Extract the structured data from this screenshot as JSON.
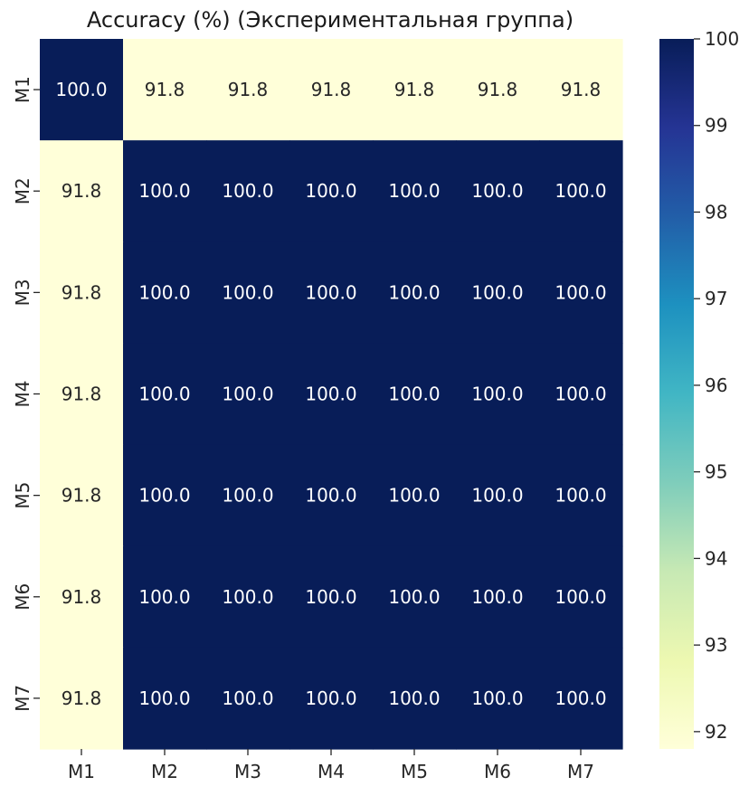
{
  "chart_data": {
    "type": "heatmap",
    "title": "Accuracy (%) (Экспериментальная группа)",
    "x_categories": [
      "M1",
      "M2",
      "M3",
      "M4",
      "M5",
      "M6",
      "M7"
    ],
    "y_categories": [
      "M1",
      "M2",
      "M3",
      "M4",
      "M5",
      "M6",
      "M7"
    ],
    "values": [
      [
        100.0,
        91.8,
        91.8,
        91.8,
        91.8,
        91.8,
        91.8
      ],
      [
        91.8,
        100.0,
        100.0,
        100.0,
        100.0,
        100.0,
        100.0
      ],
      [
        91.8,
        100.0,
        100.0,
        100.0,
        100.0,
        100.0,
        100.0
      ],
      [
        91.8,
        100.0,
        100.0,
        100.0,
        100.0,
        100.0,
        100.0
      ],
      [
        91.8,
        100.0,
        100.0,
        100.0,
        100.0,
        100.0,
        100.0
      ],
      [
        91.8,
        100.0,
        100.0,
        100.0,
        100.0,
        100.0,
        100.0
      ],
      [
        91.8,
        100.0,
        100.0,
        100.0,
        100.0,
        100.0,
        100.0
      ]
    ],
    "cell_labels": [
      [
        "100.0",
        "91.8",
        "91.8",
        "91.8",
        "91.8",
        "91.8",
        "91.8"
      ],
      [
        "91.8",
        "100.0",
        "100.0",
        "100.0",
        "100.0",
        "100.0",
        "100.0"
      ],
      [
        "91.8",
        "100.0",
        "100.0",
        "100.0",
        "100.0",
        "100.0",
        "100.0"
      ],
      [
        "91.8",
        "100.0",
        "100.0",
        "100.0",
        "100.0",
        "100.0",
        "100.0"
      ],
      [
        "91.8",
        "100.0",
        "100.0",
        "100.0",
        "100.0",
        "100.0",
        "100.0"
      ],
      [
        "91.8",
        "100.0",
        "100.0",
        "100.0",
        "100.0",
        "100.0",
        "100.0"
      ],
      [
        "91.8",
        "100.0",
        "100.0",
        "100.0",
        "100.0",
        "100.0",
        "100.0"
      ]
    ],
    "colorscale": "YlGnBu",
    "colorbar": {
      "range": [
        91.8,
        100.0
      ],
      "ticks": [
        "92",
        "93",
        "94",
        "95",
        "96",
        "97",
        "98",
        "99",
        "100"
      ],
      "placement": "right"
    },
    "colors": {
      "low": "#ffffd9",
      "high": "#081d58",
      "label_on_dark": "#ffffff",
      "label_on_light": "#262626"
    }
  }
}
